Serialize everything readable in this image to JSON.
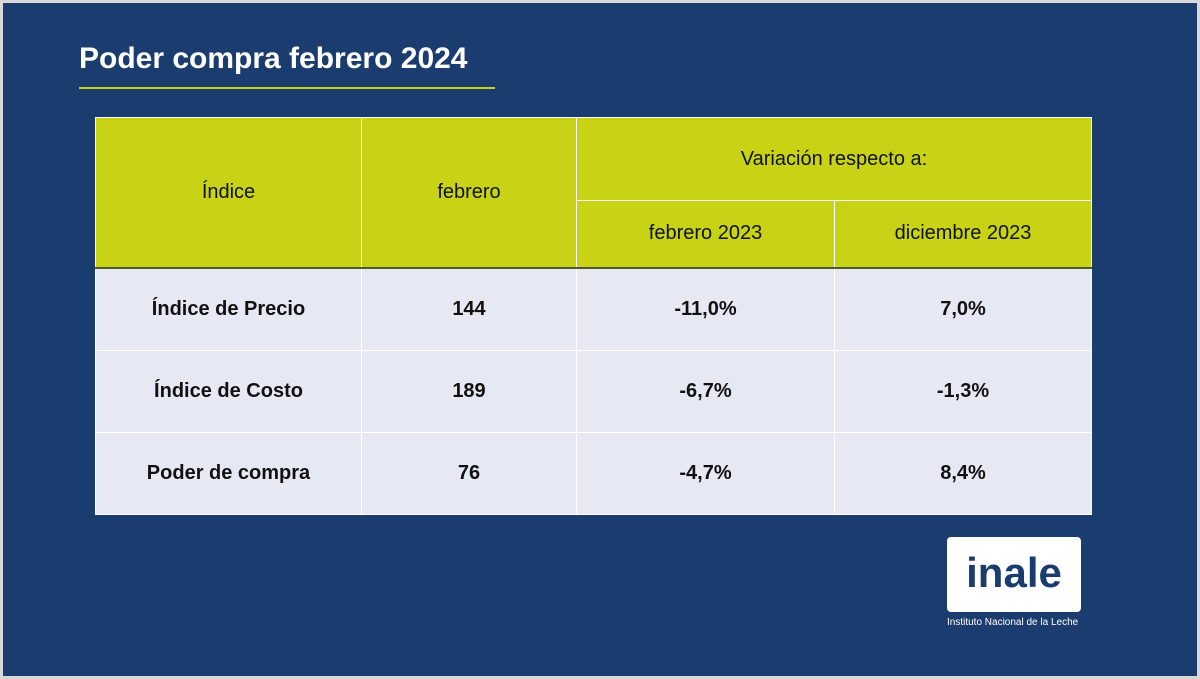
{
  "title": "Poder compra febrero 2024",
  "colors": {
    "background": "#1b3c6e",
    "accent": "#c8d316",
    "row_fill": "#e6e9f4"
  },
  "table": {
    "headers": {
      "indice": "Índice",
      "febrero": "febrero",
      "variacion": "Variación respecto a:",
      "sub": [
        "febrero 2023",
        "diciembre 2023"
      ]
    },
    "rows": [
      [
        "Índice de Precio",
        "144",
        "-11,0%",
        "7,0%"
      ],
      [
        "Índice de Costo",
        "189",
        "-6,7%",
        "-1,3%"
      ],
      [
        "Poder de compra",
        "76",
        "-4,7%",
        "8,4%"
      ]
    ]
  },
  "logo": {
    "text": "inale",
    "caption": "Instituto Nacional de la Leche"
  }
}
